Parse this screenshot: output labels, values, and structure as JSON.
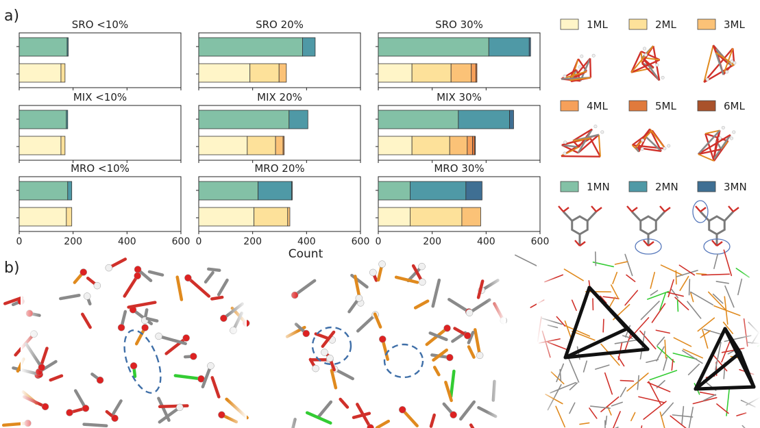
{
  "panel_labels": {
    "a": "a)",
    "b": "b)"
  },
  "colors": {
    "1ML": "#fff5c8",
    "2ML": "#fde19a",
    "3ML": "#fbc277",
    "4ML": "#f6a05a",
    "5ML": "#e07a3c",
    "6ML": "#a9522b",
    "1MN": "#83c1a6",
    "2MN": "#4f99a6",
    "3MN": "#3f6f93",
    "molecule_bond": "#d0302a",
    "molecule_metal": "#e08a1e",
    "ligand": "#7a7a7a",
    "ring": "#5577bb"
  },
  "legend": [
    {
      "key": "1ML",
      "label": "1ML"
    },
    {
      "key": "2ML",
      "label": "2ML"
    },
    {
      "key": "3ML",
      "label": "3ML"
    },
    {
      "key": "4ML",
      "label": "4ML"
    },
    {
      "key": "5ML",
      "label": "5ML"
    },
    {
      "key": "6ML",
      "label": "6ML"
    },
    {
      "key": "1MN",
      "label": "1MN"
    },
    {
      "key": "2MN",
      "label": "2MN"
    },
    {
      "key": "3MN",
      "label": "3MN"
    }
  ],
  "chart_data": {
    "type": "bar",
    "orientation": "horizontal",
    "stacked": true,
    "xlabel": "Count",
    "xlim": [
      0,
      600
    ],
    "xticks": [
      0,
      200,
      400,
      600
    ],
    "subplots": [
      {
        "title": "SRO <10%",
        "mn": [
          178,
          4,
          0
        ],
        "ml": [
          155,
          15,
          0,
          0,
          0,
          0
        ]
      },
      {
        "title": "SRO 20%",
        "mn": [
          385,
          47,
          0
        ],
        "ml": [
          190,
          108,
          27,
          0,
          0,
          0
        ]
      },
      {
        "title": "SRO 30%",
        "mn": [
          410,
          150,
          5
        ],
        "ml": [
          125,
          145,
          75,
          17,
          4,
          0
        ]
      },
      {
        "title": "MIX <10%",
        "mn": [
          175,
          5,
          0
        ],
        "ml": [
          155,
          15,
          0,
          0,
          0,
          0
        ]
      },
      {
        "title": "MIX 20%",
        "mn": [
          335,
          70,
          0
        ],
        "ml": [
          180,
          105,
          28,
          4,
          0,
          0
        ]
      },
      {
        "title": "MIX 30%",
        "mn": [
          297,
          190,
          15
        ],
        "ml": [
          125,
          140,
          65,
          20,
          8,
          2
        ]
      },
      {
        "title": "MRO <10%",
        "mn": [
          180,
          15,
          0
        ],
        "ml": [
          175,
          20,
          0,
          0,
          0,
          0
        ]
      },
      {
        "title": "MRO 20%",
        "mn": [
          220,
          125,
          2
        ],
        "ml": [
          205,
          125,
          8,
          0,
          0,
          0
        ]
      },
      {
        "title": "MRO 30%",
        "mn": [
          118,
          207,
          60
        ],
        "ml": [
          118,
          192,
          70,
          0,
          0,
          0
        ]
      }
    ]
  }
}
